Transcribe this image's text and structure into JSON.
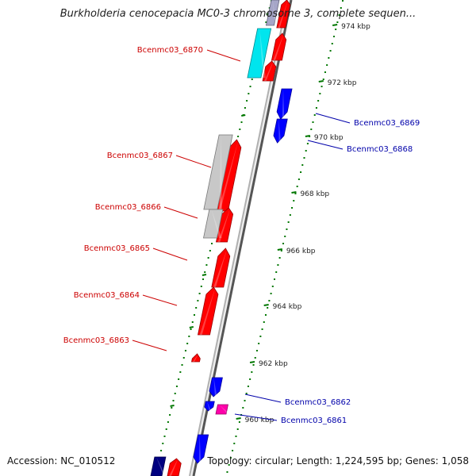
{
  "title": "Burkholderia cenocepacia MC0-3 chromosome 3, complete sequen...",
  "accession": "Accession: NC_010512",
  "summary": "Topology: circular; Length: 1,224,595 bp; Genes: 1,058",
  "colors": {
    "forward_gene": "#ff0000",
    "reverse_gene": "#0000ff",
    "forward_label": "#cc0000",
    "reverse_label": "#0000aa",
    "cds_gray": "#c8c8c8",
    "cds_cyan": "#00e5ee",
    "magenta": "#ff00aa",
    "navy": "#000080",
    "ruler_green": "#007700",
    "backbone": "#999999"
  },
  "ruler": {
    "unit": "kbp",
    "ticks": [
      "974 kbp",
      "972 kbp",
      "970 kbp",
      "968 kbp",
      "966 kbp",
      "964 kbp",
      "962 kbp",
      "960 kbp"
    ]
  },
  "gene_labels": [
    {
      "text": "Bcenmc03_6870",
      "strand": "forward"
    },
    {
      "text": "Bcenmc03_6869",
      "strand": "reverse"
    },
    {
      "text": "Bcenmc03_6868",
      "strand": "reverse"
    },
    {
      "text": "Bcenmc03_6867",
      "strand": "forward"
    },
    {
      "text": "Bcenmc03_6866",
      "strand": "forward"
    },
    {
      "text": "Bcenmc03_6865",
      "strand": "forward"
    },
    {
      "text": "Bcenmc03_6864",
      "strand": "forward"
    },
    {
      "text": "Bcenmc03_6863",
      "strand": "forward"
    },
    {
      "text": "Bcenmc03_6862",
      "strand": "reverse"
    },
    {
      "text": "Bcenmc03_6861",
      "strand": "reverse"
    }
  ]
}
